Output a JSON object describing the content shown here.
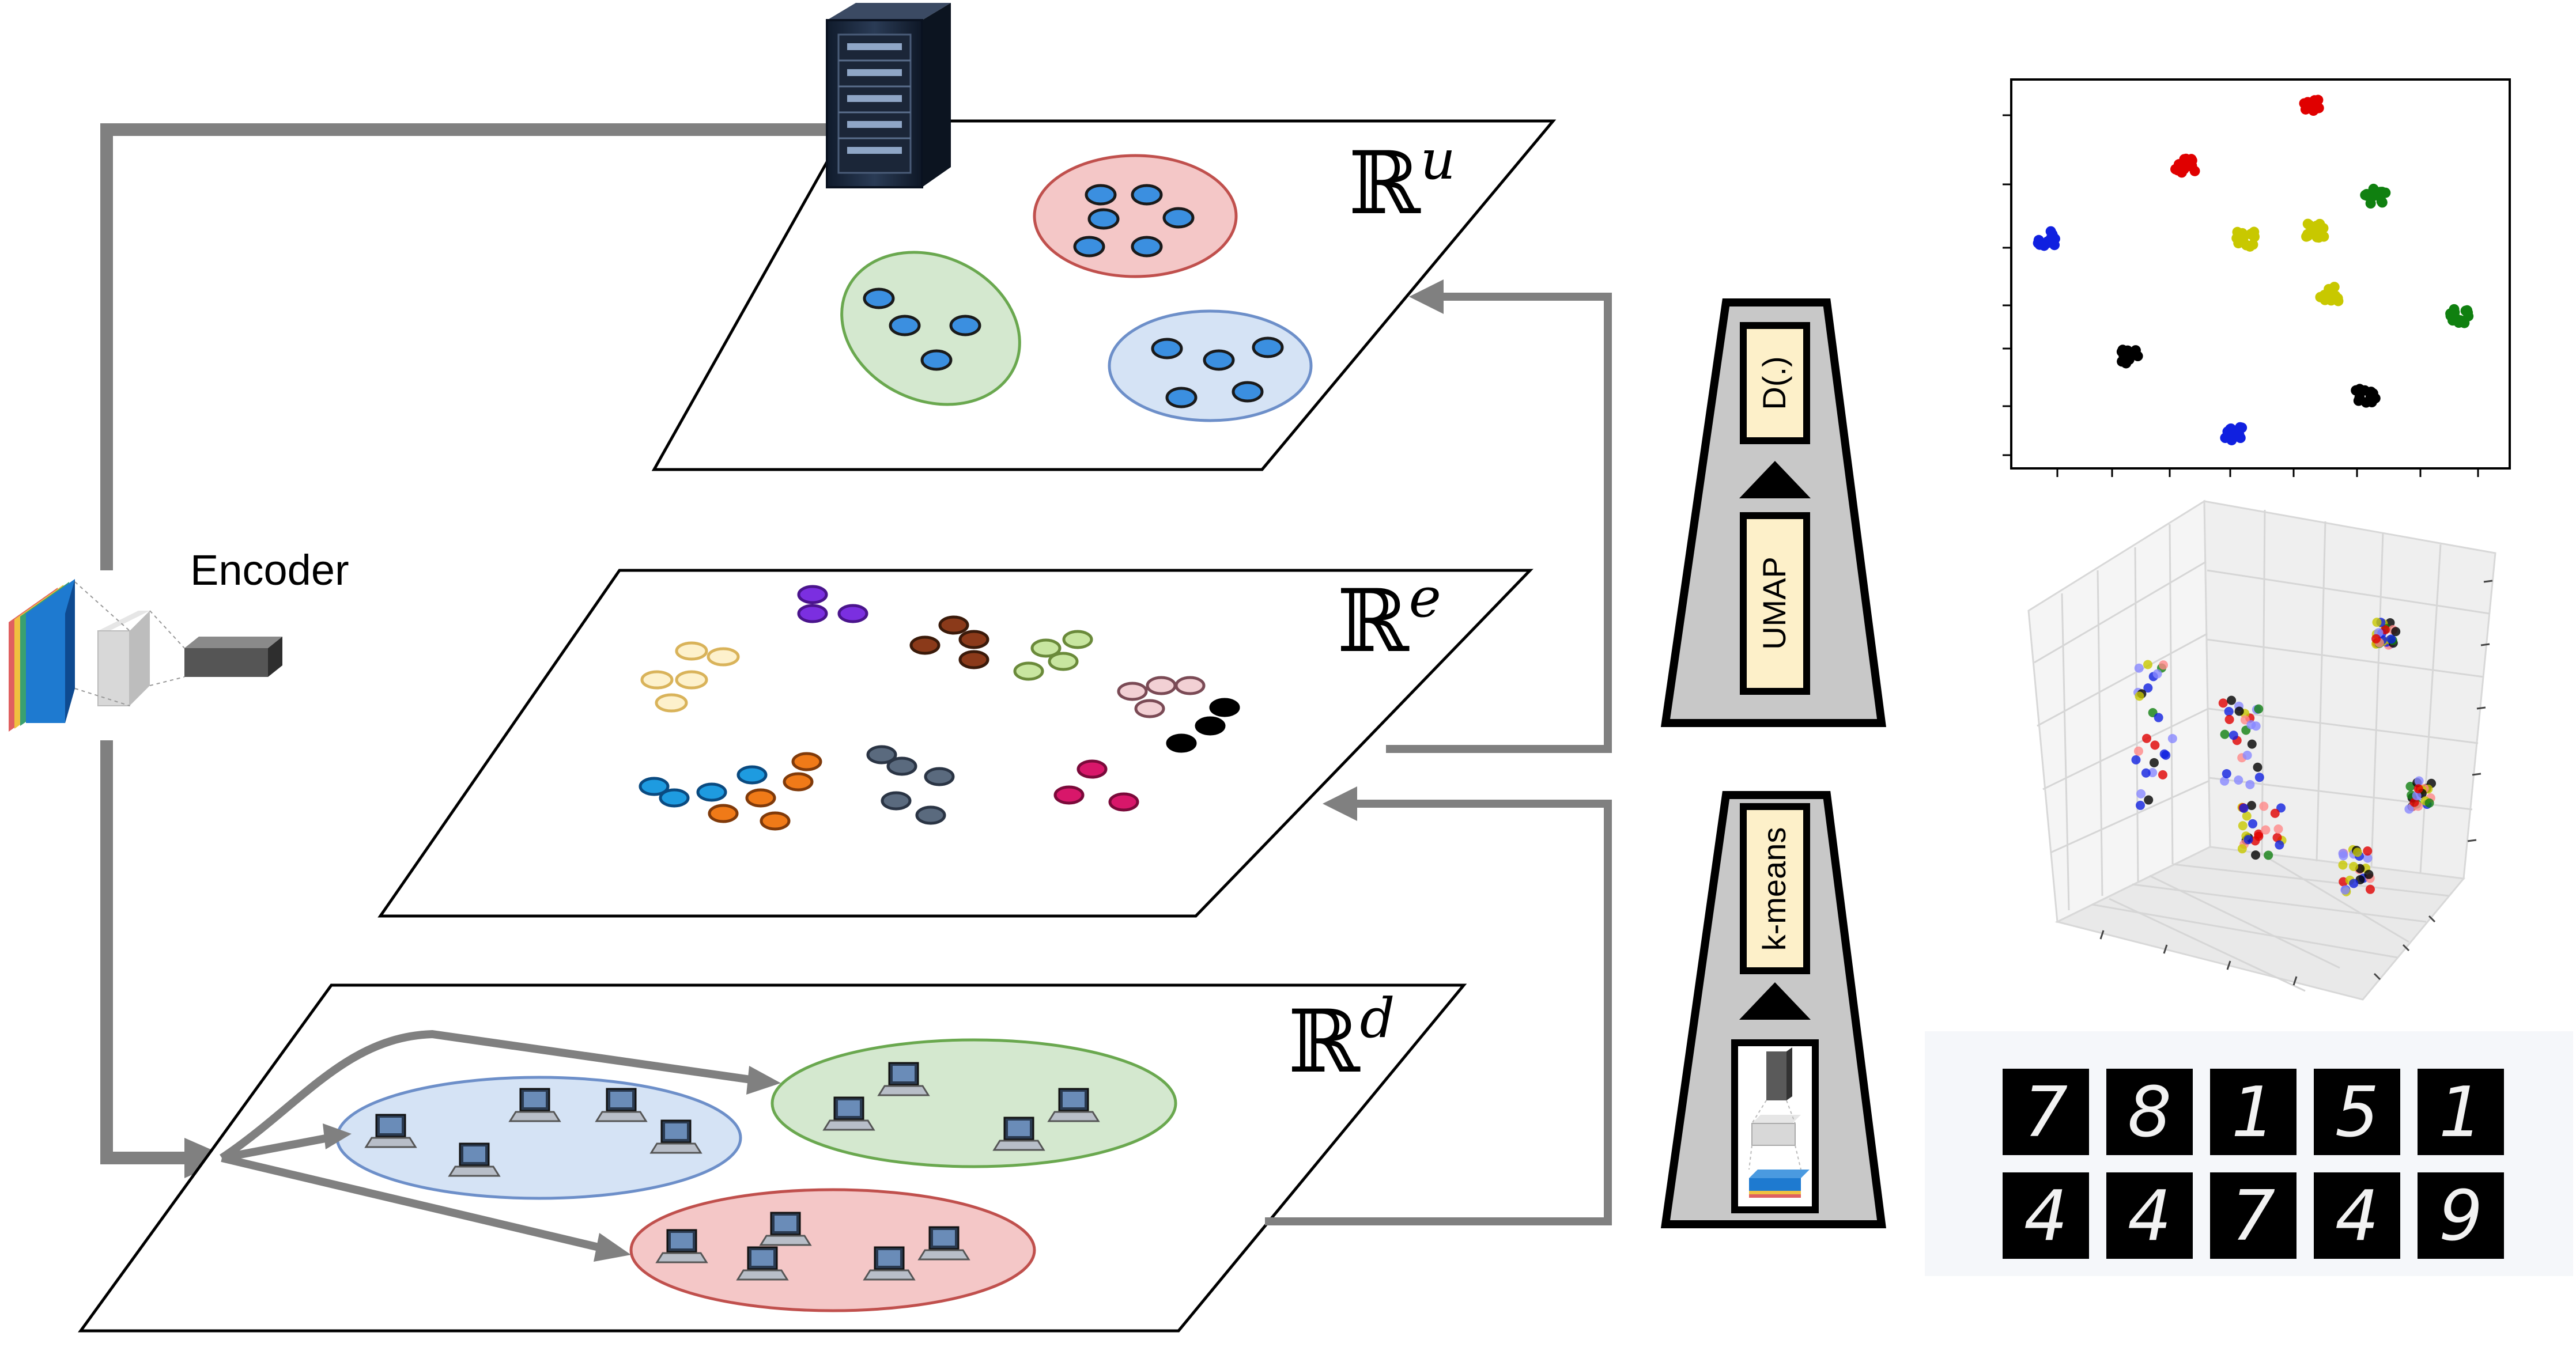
{
  "encoder": {
    "label": "Encoder"
  },
  "planes": {
    "top": {
      "symbol": "ℝ",
      "sup": "u"
    },
    "middle": {
      "symbol": "ℝ",
      "sup": "e"
    },
    "bottom": {
      "symbol": "ℝ",
      "sup": "d"
    }
  },
  "pipeline": {
    "upper": {
      "bottom_label": "UMAP",
      "top_label": "D(.)"
    },
    "lower": {
      "top_label": "k-means"
    }
  },
  "colors": {
    "arrow": "#808080",
    "cluster_red": "#f4c7c7",
    "cluster_green": "#d4e8cf",
    "cluster_blue": "#d5e3f5",
    "node_blue": "#3b8fe0",
    "box_fill": "#fdf0c9",
    "funnel_fill": "#c8c8c8"
  },
  "chart_data": [
    {
      "type": "scatter",
      "title": "",
      "xlabel": "",
      "ylabel": "",
      "grid": false,
      "series": [
        {
          "color": "red",
          "points": [
            [
              0.6,
              0.07
            ],
            [
              0.35,
              0.22
            ]
          ]
        },
        {
          "color": "blue",
          "points": [
            [
              0.07,
              0.41
            ],
            [
              0.45,
              0.91
            ]
          ]
        },
        {
          "color": "yellow",
          "points": [
            [
              0.47,
              0.41
            ],
            [
              0.64,
              0.55
            ],
            [
              0.61,
              0.39
            ]
          ]
        },
        {
          "color": "green",
          "points": [
            [
              0.73,
              0.3
            ],
            [
              0.9,
              0.61
            ]
          ]
        },
        {
          "color": "black",
          "points": [
            [
              0.24,
              0.71
            ],
            [
              0.71,
              0.81
            ]
          ]
        }
      ]
    },
    {
      "type": "scatter",
      "title": "",
      "projection": "3d",
      "grid": true
    }
  ],
  "digits": {
    "row1": [
      "7",
      "8",
      "1",
      "5",
      "1"
    ],
    "row2": [
      "4",
      "4",
      "7",
      "4",
      "9"
    ]
  }
}
